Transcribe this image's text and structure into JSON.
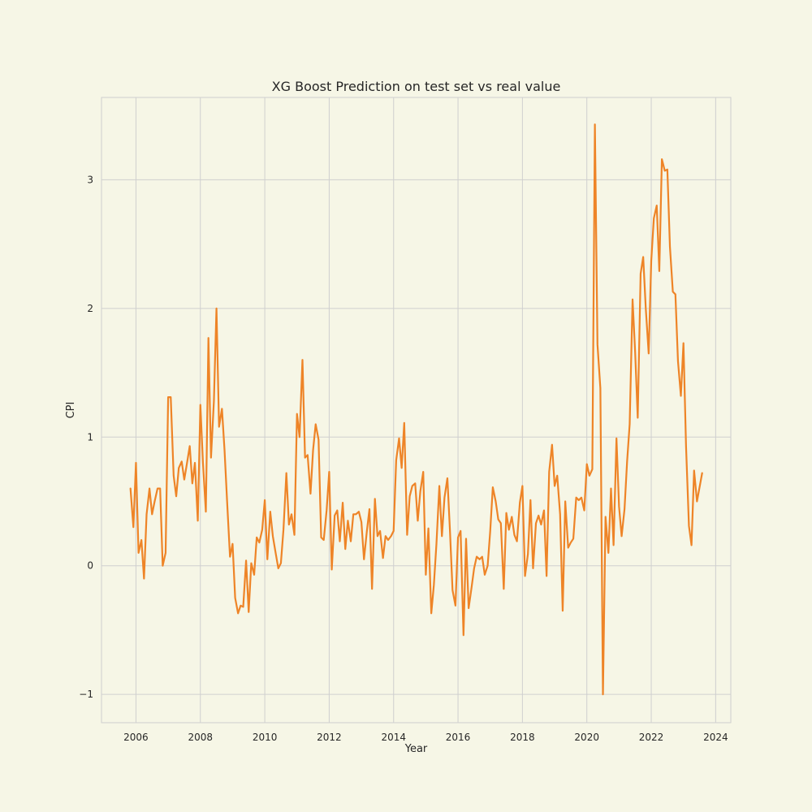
{
  "chart_data": {
    "type": "line",
    "title": "XG Boost Prediction on test set vs real value",
    "xlabel": "Year",
    "ylabel": "CPI",
    "xlim": [
      2004.93,
      2024.47
    ],
    "ylim": [
      -1.22,
      3.64
    ],
    "xticks": [
      "2006",
      "2008",
      "2010",
      "2012",
      "2014",
      "2016",
      "2018",
      "2020",
      "2022",
      "2024"
    ],
    "yticks": [
      "−1",
      "0",
      "1",
      "2",
      "3"
    ],
    "grid": true,
    "colors": {
      "series": "#ee8427",
      "background": "#f6f6e6",
      "grid": "#cfcfcf"
    },
    "series": [
      {
        "x": [
          2005.83,
          2005.92,
          2006.0,
          2006.08,
          2006.17,
          2006.25,
          2006.33,
          2006.42,
          2006.5,
          2006.58,
          2006.67,
          2006.75,
          2006.83,
          2006.92,
          2007.0,
          2007.08,
          2007.17,
          2007.25,
          2007.33,
          2007.42,
          2007.5,
          2007.58,
          2007.67,
          2007.75,
          2007.83,
          2007.92,
          2008.0,
          2008.08,
          2008.17,
          2008.25,
          2008.33,
          2008.42,
          2008.5,
          2008.58,
          2008.67,
          2008.75,
          2008.83,
          2008.92,
          2009.0,
          2009.08,
          2009.17,
          2009.25,
          2009.33,
          2009.42,
          2009.5,
          2009.58,
          2009.67,
          2009.75,
          2009.83,
          2009.92,
          2010.0,
          2010.08,
          2010.17,
          2010.25,
          2010.33,
          2010.42,
          2010.5,
          2010.58,
          2010.67,
          2010.75,
          2010.83,
          2010.92,
          2011.0,
          2011.08,
          2011.17,
          2011.25,
          2011.33,
          2011.42,
          2011.5,
          2011.58,
          2011.67,
          2011.75,
          2011.83,
          2011.92,
          2012.0,
          2012.08,
          2012.17,
          2012.25,
          2012.33,
          2012.42,
          2012.5,
          2012.58,
          2012.67,
          2012.75,
          2012.83,
          2012.92,
          2013.0,
          2013.08,
          2013.17,
          2013.25,
          2013.33,
          2013.42,
          2013.5,
          2013.58,
          2013.67,
          2013.75,
          2013.83,
          2013.92,
          2014.0,
          2014.08,
          2014.17,
          2014.25,
          2014.33,
          2014.42,
          2014.5,
          2014.58,
          2014.67,
          2014.75,
          2014.83,
          2014.92,
          2015.0,
          2015.08,
          2015.17,
          2015.25,
          2015.33,
          2015.42,
          2015.5,
          2015.58,
          2015.67,
          2015.75,
          2015.83,
          2015.92,
          2016.0,
          2016.08,
          2016.17,
          2016.25,
          2016.33,
          2016.42,
          2016.5,
          2016.58,
          2016.67,
          2016.75,
          2016.83,
          2016.92,
          2017.0,
          2017.08,
          2017.17,
          2017.25,
          2017.33,
          2017.42,
          2017.5,
          2017.58,
          2017.67,
          2017.75,
          2017.83,
          2017.92,
          2018.0,
          2018.08,
          2018.17,
          2018.25,
          2018.33,
          2018.42,
          2018.5,
          2018.58,
          2018.67,
          2018.75,
          2018.83,
          2018.92,
          2019.0,
          2019.08,
          2019.17,
          2019.25,
          2019.33,
          2019.42,
          2019.5,
          2019.58,
          2019.67,
          2019.75,
          2019.83,
          2019.92,
          2020.0,
          2020.08,
          2020.17,
          2020.25,
          2020.33,
          2020.42,
          2020.5,
          2020.58,
          2020.67,
          2020.75,
          2020.83,
          2020.92,
          2021.0,
          2021.08,
          2021.17,
          2021.25,
          2021.33,
          2021.42,
          2021.5,
          2021.58,
          2021.67,
          2021.75,
          2021.83,
          2021.92,
          2022.0,
          2022.08,
          2022.17,
          2022.25,
          2022.33,
          2022.42,
          2022.5,
          2022.58,
          2022.67,
          2022.75,
          2022.83,
          2022.92,
          2023.0,
          2023.08,
          2023.17,
          2023.25,
          2023.33,
          2023.42,
          2023.5,
          2023.58
        ],
        "values": [
          0.6,
          0.3,
          0.8,
          0.1,
          0.2,
          -0.1,
          0.4,
          0.6,
          0.4,
          0.5,
          0.6,
          0.6,
          0.0,
          0.1,
          1.31,
          1.31,
          0.7,
          0.54,
          0.76,
          0.81,
          0.67,
          0.79,
          0.93,
          0.64,
          0.8,
          0.35,
          1.25,
          0.8,
          0.42,
          1.77,
          0.84,
          1.28,
          2.0,
          1.08,
          1.22,
          0.9,
          0.5,
          0.07,
          0.17,
          -0.25,
          -0.37,
          -0.31,
          -0.32,
          0.04,
          -0.36,
          0.02,
          -0.07,
          0.22,
          0.18,
          0.28,
          0.51,
          0.05,
          0.42,
          0.23,
          0.11,
          -0.02,
          0.02,
          0.28,
          0.72,
          0.32,
          0.4,
          0.24,
          1.18,
          1.0,
          1.6,
          0.84,
          0.86,
          0.56,
          0.9,
          1.1,
          0.98,
          0.22,
          0.2,
          0.43,
          0.73,
          -0.03,
          0.39,
          0.43,
          0.19,
          0.49,
          0.13,
          0.35,
          0.19,
          0.4,
          0.4,
          0.42,
          0.34,
          0.05,
          0.27,
          0.44,
          -0.18,
          0.52,
          0.23,
          0.27,
          0.06,
          0.23,
          0.2,
          0.23,
          0.27,
          0.82,
          0.99,
          0.76,
          1.11,
          0.24,
          0.54,
          0.62,
          0.64,
          0.35,
          0.58,
          0.73,
          -0.07,
          0.29,
          -0.37,
          -0.15,
          0.17,
          0.62,
          0.23,
          0.53,
          0.68,
          0.27,
          -0.19,
          -0.31,
          0.22,
          0.27,
          -0.54,
          0.21,
          -0.33,
          -0.17,
          -0.02,
          0.07,
          0.05,
          0.07,
          -0.07,
          0.0,
          0.27,
          0.61,
          0.5,
          0.36,
          0.33,
          -0.18,
          0.41,
          0.28,
          0.38,
          0.24,
          0.19,
          0.49,
          0.62,
          -0.08,
          0.09,
          0.51,
          -0.02,
          0.33,
          0.39,
          0.32,
          0.43,
          -0.08,
          0.73,
          0.94,
          0.62,
          0.7,
          0.4,
          -0.35,
          0.5,
          0.14,
          0.18,
          0.21,
          0.53,
          0.51,
          0.53,
          0.43,
          0.79,
          0.7,
          0.75,
          3.43,
          1.72,
          1.38,
          -1.0,
          0.38,
          0.1,
          0.6,
          0.16,
          0.99,
          0.46,
          0.23,
          0.44,
          0.81,
          1.1,
          2.07,
          1.66,
          1.15,
          2.27,
          2.4,
          2.0,
          1.65,
          2.37,
          2.7,
          2.8,
          2.29,
          3.16,
          3.07,
          3.08,
          2.48,
          2.13,
          2.11,
          1.59,
          1.32,
          1.73,
          0.93,
          0.31,
          0.16,
          0.74,
          0.5,
          0.61,
          0.72
        ]
      }
    ]
  }
}
